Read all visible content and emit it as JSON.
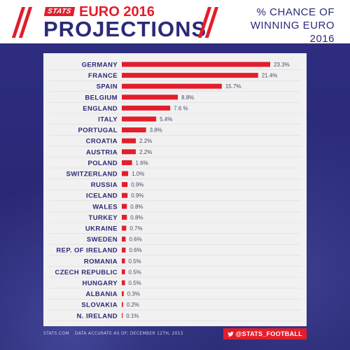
{
  "header": {
    "logo": "STATS",
    "title_top": "EURO 2016",
    "title_main": "PROJECTIONS",
    "right_line1": "% CHANCE OF",
    "right_line2": "WINNING EURO 2016"
  },
  "footer": {
    "source": "STATS.COM",
    "note": "DATA ACCURATE AS OF: DECEMBER 12TH, 2015",
    "twitter": "@STATS_FOOTBALL"
  },
  "colors": {
    "accent": "#e31d2b",
    "navy": "#2b2a78",
    "panel": "#f1f1f1"
  },
  "chart_data": {
    "type": "bar",
    "orientation": "horizontal",
    "title": "% CHANCE OF WINNING EURO 2016",
    "categories": [
      "GERMANY",
      "FRANCE",
      "SPAIN",
      "BELGIUM",
      "ENGLAND",
      "ITALY",
      "PORTUGAL",
      "CROATIA",
      "AUSTRIA",
      "POLAND",
      "SWITZERLAND",
      "RUSSIA",
      "ICELAND",
      "WALES",
      "TURKEY",
      "UKRAINE",
      "SWEDEN",
      "REP. OF IRELAND",
      "ROMANIA",
      "CZECH REPUBLIC",
      "HUNGARY",
      "ALBANIA",
      "SLOVAKIA",
      "N. IRELAND"
    ],
    "values": [
      23.3,
      21.4,
      15.7,
      8.8,
      7.6,
      5.4,
      3.8,
      2.2,
      2.2,
      1.6,
      1.0,
      0.9,
      0.9,
      0.8,
      0.8,
      0.7,
      0.6,
      0.6,
      0.5,
      0.5,
      0.5,
      0.3,
      0.2,
      0.1
    ],
    "labels": [
      "23.3%",
      "21.4%",
      "15.7%",
      "8.8%",
      "7.6 %",
      "5.4%",
      "3.8%",
      "2.2%",
      "2.2%",
      "1.6%",
      "1.0%",
      "0.9%",
      "0.9%",
      "0.8%",
      "0.8%",
      "0.7%",
      "0.6%",
      "0.6%",
      "0.5%",
      "0.5%",
      "0.5%",
      "0.3%",
      "0.2%",
      "0.1%"
    ],
    "xlim": [
      0,
      23.3
    ],
    "bar_color": "#e31d2b",
    "grid": false
  }
}
